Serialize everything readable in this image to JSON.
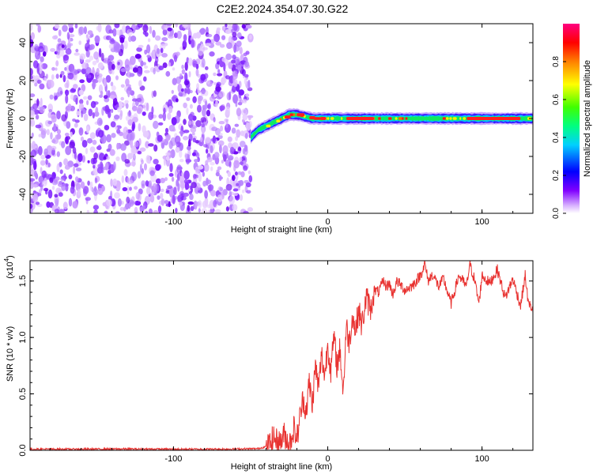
{
  "title": "C2E2.2024.354.07.30.G22",
  "chart_data": [
    {
      "type": "heatmap",
      "xlabel": "Height of straight line (km)",
      "ylabel": "Frequency (Hz)",
      "xlim": [
        -193,
        133
      ],
      "ylim": [
        -50,
        50
      ],
      "xticks": [
        -100,
        0,
        100
      ],
      "xtick_labels": [
        "-100",
        "0",
        "100"
      ],
      "yticks": [
        -40,
        -20,
        0,
        20,
        40
      ],
      "ytick_labels": [
        "-40",
        "-20",
        "0",
        "20",
        "40"
      ],
      "colorbar": {
        "label": "Normalized spectral amplitude",
        "range": [
          0,
          1
        ],
        "ticks": [
          0.0,
          0.2,
          0.4,
          0.6,
          0.8
        ],
        "tick_labels": [
          "0.0",
          "0.2",
          "0.4",
          "0.6",
          "0.8"
        ],
        "colormap": [
          "#ffffff",
          "#8000ff",
          "#0000ff",
          "#00ffff",
          "#00ff00",
          "#ffff00",
          "#ff8000",
          "#ff0000",
          "#ff00ff"
        ]
      },
      "noise_region_x": [
        -193,
        -50
      ],
      "signal_track": {
        "x": [
          -50,
          -45,
          -40,
          -35,
          -30,
          -25,
          -20,
          -15,
          -10,
          -5,
          0,
          10,
          20,
          30,
          50,
          70,
          100,
          133
        ],
        "y": [
          -10,
          -6,
          -4,
          -2,
          0,
          2,
          2,
          1,
          0,
          0,
          0,
          0,
          0,
          0,
          0,
          0,
          0,
          0
        ]
      }
    },
    {
      "type": "line",
      "xlabel": "Height of straight line (km)",
      "ylabel": "SNR (10 * v/v)",
      "exponent_label": "(x10",
      "exponent_power": "4",
      "exponent_close": ")",
      "xlim": [
        -193,
        133
      ],
      "ylim": [
        0,
        1.68
      ],
      "xticks": [
        -100,
        0,
        100
      ],
      "xtick_labels": [
        "-100",
        "0",
        "100"
      ],
      "yticks": [
        0.0,
        0.5,
        1.0,
        1.5
      ],
      "ytick_labels": [
        "0.0",
        "0.5",
        "1.0",
        "1.5"
      ],
      "color": "#e8312f",
      "series": [
        {
          "x": [
            -193,
            -160,
            -130,
            -100,
            -70,
            -45,
            -38,
            -35,
            -32,
            -28,
            -25,
            -22,
            -20,
            -18,
            -16,
            -14,
            -12,
            -10,
            -8,
            -6,
            -4,
            -2,
            0,
            2,
            4,
            6,
            8,
            10,
            12,
            14,
            16,
            18,
            20,
            22,
            25,
            28,
            30,
            33,
            36,
            38,
            40,
            42,
            45,
            50,
            55,
            60,
            63,
            65,
            68,
            72,
            75,
            80,
            85,
            90,
            92,
            95,
            98,
            100,
            105,
            110,
            115,
            120,
            125,
            128,
            130,
            133
          ],
          "y": [
            0.01,
            0.01,
            0.012,
            0.01,
            0.01,
            0.015,
            0.04,
            0.12,
            0.05,
            0.14,
            0.04,
            0.2,
            0.1,
            0.3,
            0.45,
            0.35,
            0.6,
            0.4,
            0.75,
            0.55,
            0.85,
            0.65,
            0.95,
            0.7,
            1.0,
            0.75,
            0.9,
            0.5,
            1.1,
            0.95,
            1.2,
            1.05,
            1.25,
            1.1,
            1.35,
            1.25,
            1.42,
            1.4,
            1.5,
            1.45,
            1.48,
            1.38,
            1.5,
            1.42,
            1.46,
            1.55,
            1.65,
            1.5,
            1.56,
            1.45,
            1.52,
            1.3,
            1.55,
            1.45,
            1.65,
            1.52,
            1.3,
            1.55,
            1.48,
            1.6,
            1.35,
            1.52,
            1.28,
            1.55,
            1.3,
            1.25
          ]
        }
      ]
    }
  ]
}
